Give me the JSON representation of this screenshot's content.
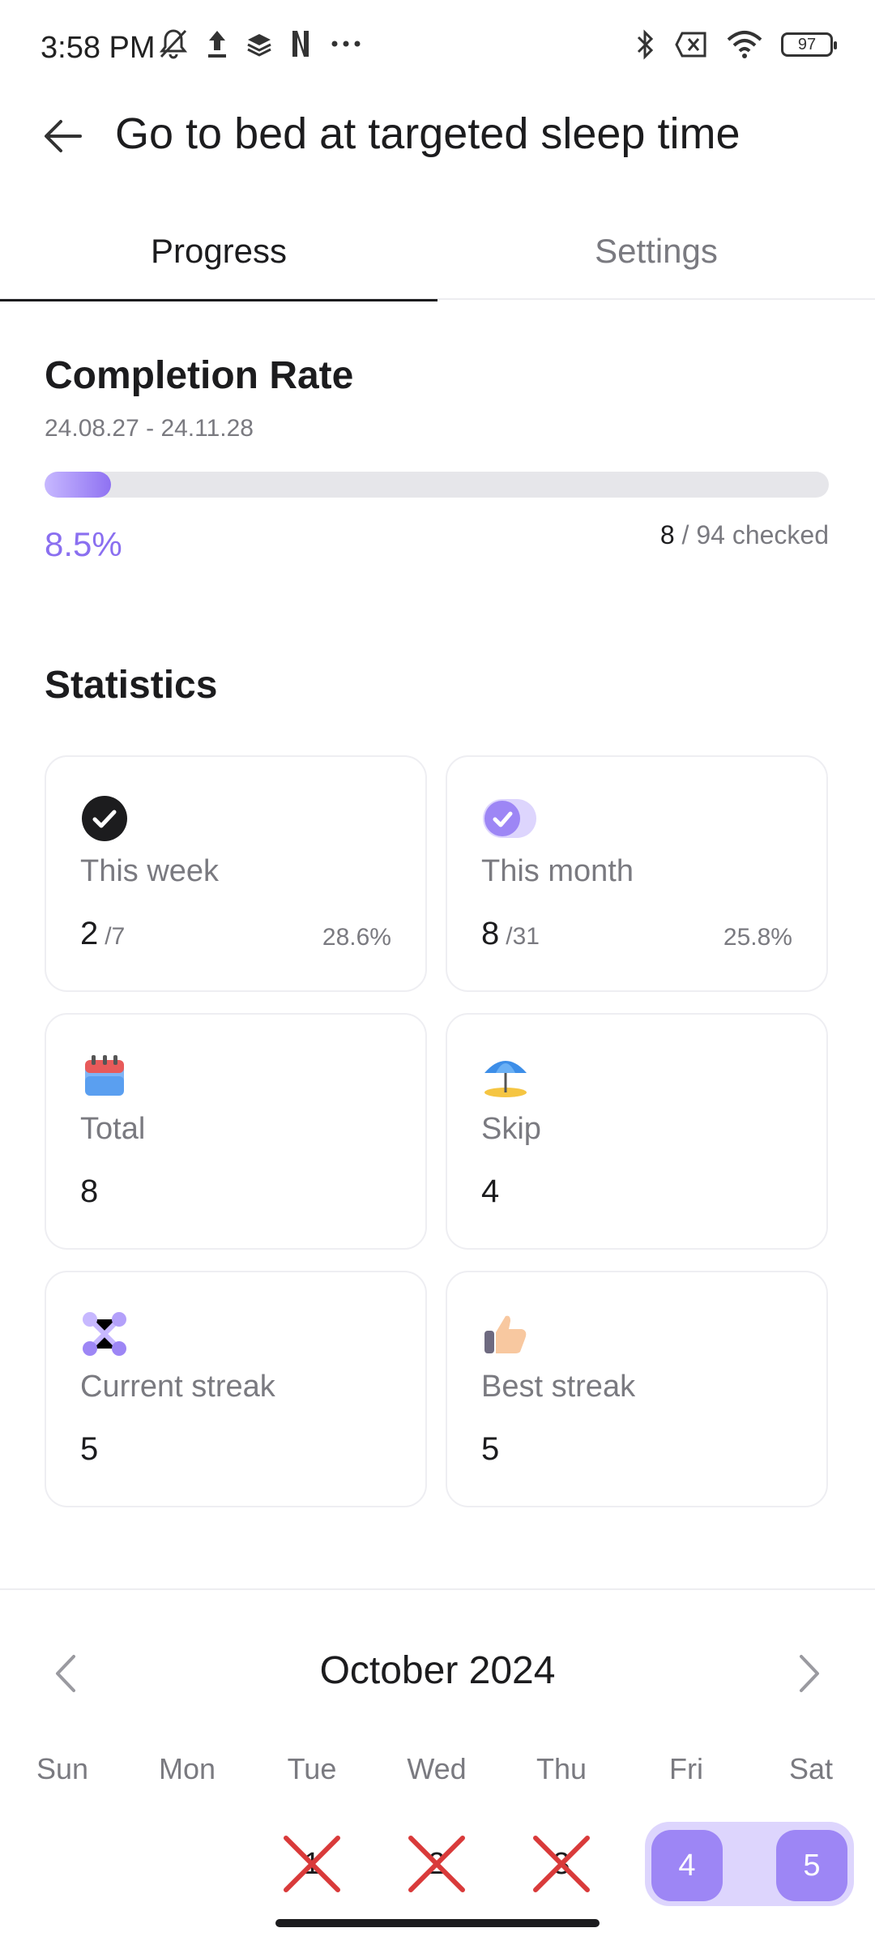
{
  "status_bar": {
    "time": "3:58 PM",
    "battery": "97"
  },
  "header": {
    "title": "Go to bed at targeted sleep time"
  },
  "tabs": [
    {
      "label": "Progress",
      "active": true
    },
    {
      "label": "Settings",
      "active": false
    }
  ],
  "completion": {
    "title": "Completion Rate",
    "date_range": "24.08.27 - 24.11.28",
    "progress_fraction": 0.085,
    "percent_text": "8.5%",
    "checked_count": "8",
    "checked_total_text": "/ 94 checked"
  },
  "statistics": {
    "title": "Statistics",
    "cards": [
      {
        "label": "This week",
        "value": "2",
        "denom": "/7",
        "percent": "28.6%",
        "icon": "check-circle-icon"
      },
      {
        "label": "This month",
        "value": "8",
        "denom": "/31",
        "percent": "25.8%",
        "icon": "check-toggle-icon"
      },
      {
        "label": "Total",
        "value": "8",
        "icon": "calendar-icon"
      },
      {
        "label": "Skip",
        "value": "4",
        "icon": "beach-umbrella-icon"
      },
      {
        "label": "Current streak",
        "value": "5",
        "icon": "streak-nodes-icon"
      },
      {
        "label": "Best streak",
        "value": "5",
        "icon": "thumbs-up-icon"
      }
    ]
  },
  "calendar": {
    "month": "October 2024",
    "weekdays": [
      "Sun",
      "Mon",
      "Tue",
      "Wed",
      "Thu",
      "Fri",
      "Sat"
    ],
    "days": [
      {
        "num": "1",
        "status": "missed"
      },
      {
        "num": "2",
        "status": "missed"
      },
      {
        "num": "3",
        "status": "missed"
      },
      {
        "num": "4",
        "status": "done"
      },
      {
        "num": "5",
        "status": "done"
      }
    ]
  },
  "colors": {
    "accent": "#8f72f2",
    "accent_light": "#ddd5fd",
    "missed_red": "#d93a3a"
  }
}
